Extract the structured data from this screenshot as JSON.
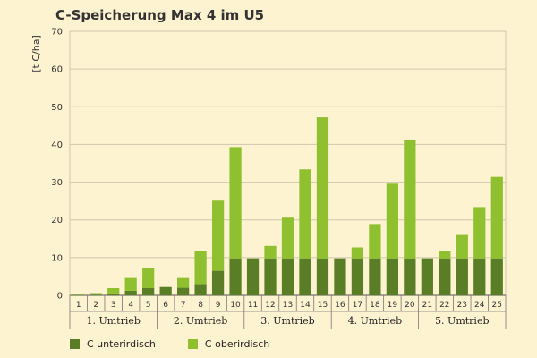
{
  "chart_data": {
    "type": "bar",
    "stacked": true,
    "title": "C-Speicherung Max 4 im U5",
    "ylabel": "[t C/ha]",
    "xlabel": "",
    "ylim": [
      0,
      70
    ],
    "yticks": [
      0,
      10,
      20,
      30,
      40,
      50,
      60,
      70
    ],
    "grid": true,
    "legend_position": "bottom-left",
    "categories": [
      "1",
      "2",
      "3",
      "4",
      "5",
      "6",
      "7",
      "8",
      "9",
      "10",
      "11",
      "12",
      "13",
      "14",
      "15",
      "16",
      "17",
      "18",
      "19",
      "20",
      "21",
      "22",
      "23",
      "24",
      "25"
    ],
    "groups": [
      {
        "label": "1. Umtrieb",
        "start": 0,
        "end": 4
      },
      {
        "label": "2. Umtrieb",
        "start": 5,
        "end": 9
      },
      {
        "label": "3. Umtrieb",
        "start": 10,
        "end": 14
      },
      {
        "label": "4. Umtrieb",
        "start": 15,
        "end": 19
      },
      {
        "label": "5. Umtrieb",
        "start": 20,
        "end": 24
      }
    ],
    "series": [
      {
        "name": "C unterirdisch",
        "color": "#5a7e25",
        "values": [
          0.1,
          0.2,
          0.5,
          1.2,
          1.9,
          2.2,
          2.0,
          3.0,
          6.5,
          9.8,
          9.8,
          9.8,
          9.8,
          9.8,
          9.8,
          9.8,
          9.8,
          9.8,
          9.8,
          9.8,
          9.8,
          9.8,
          9.8,
          9.8,
          9.8
        ]
      },
      {
        "name": "C oberirdisch",
        "color": "#8fc030",
        "values": [
          0.1,
          0.4,
          1.4,
          3.4,
          5.3,
          0.0,
          2.6,
          8.7,
          18.6,
          29.5,
          0.0,
          3.3,
          10.8,
          23.6,
          37.4,
          0.0,
          2.9,
          9.1,
          19.8,
          31.5,
          0.0,
          2.0,
          6.2,
          13.6,
          21.6
        ]
      }
    ]
  }
}
